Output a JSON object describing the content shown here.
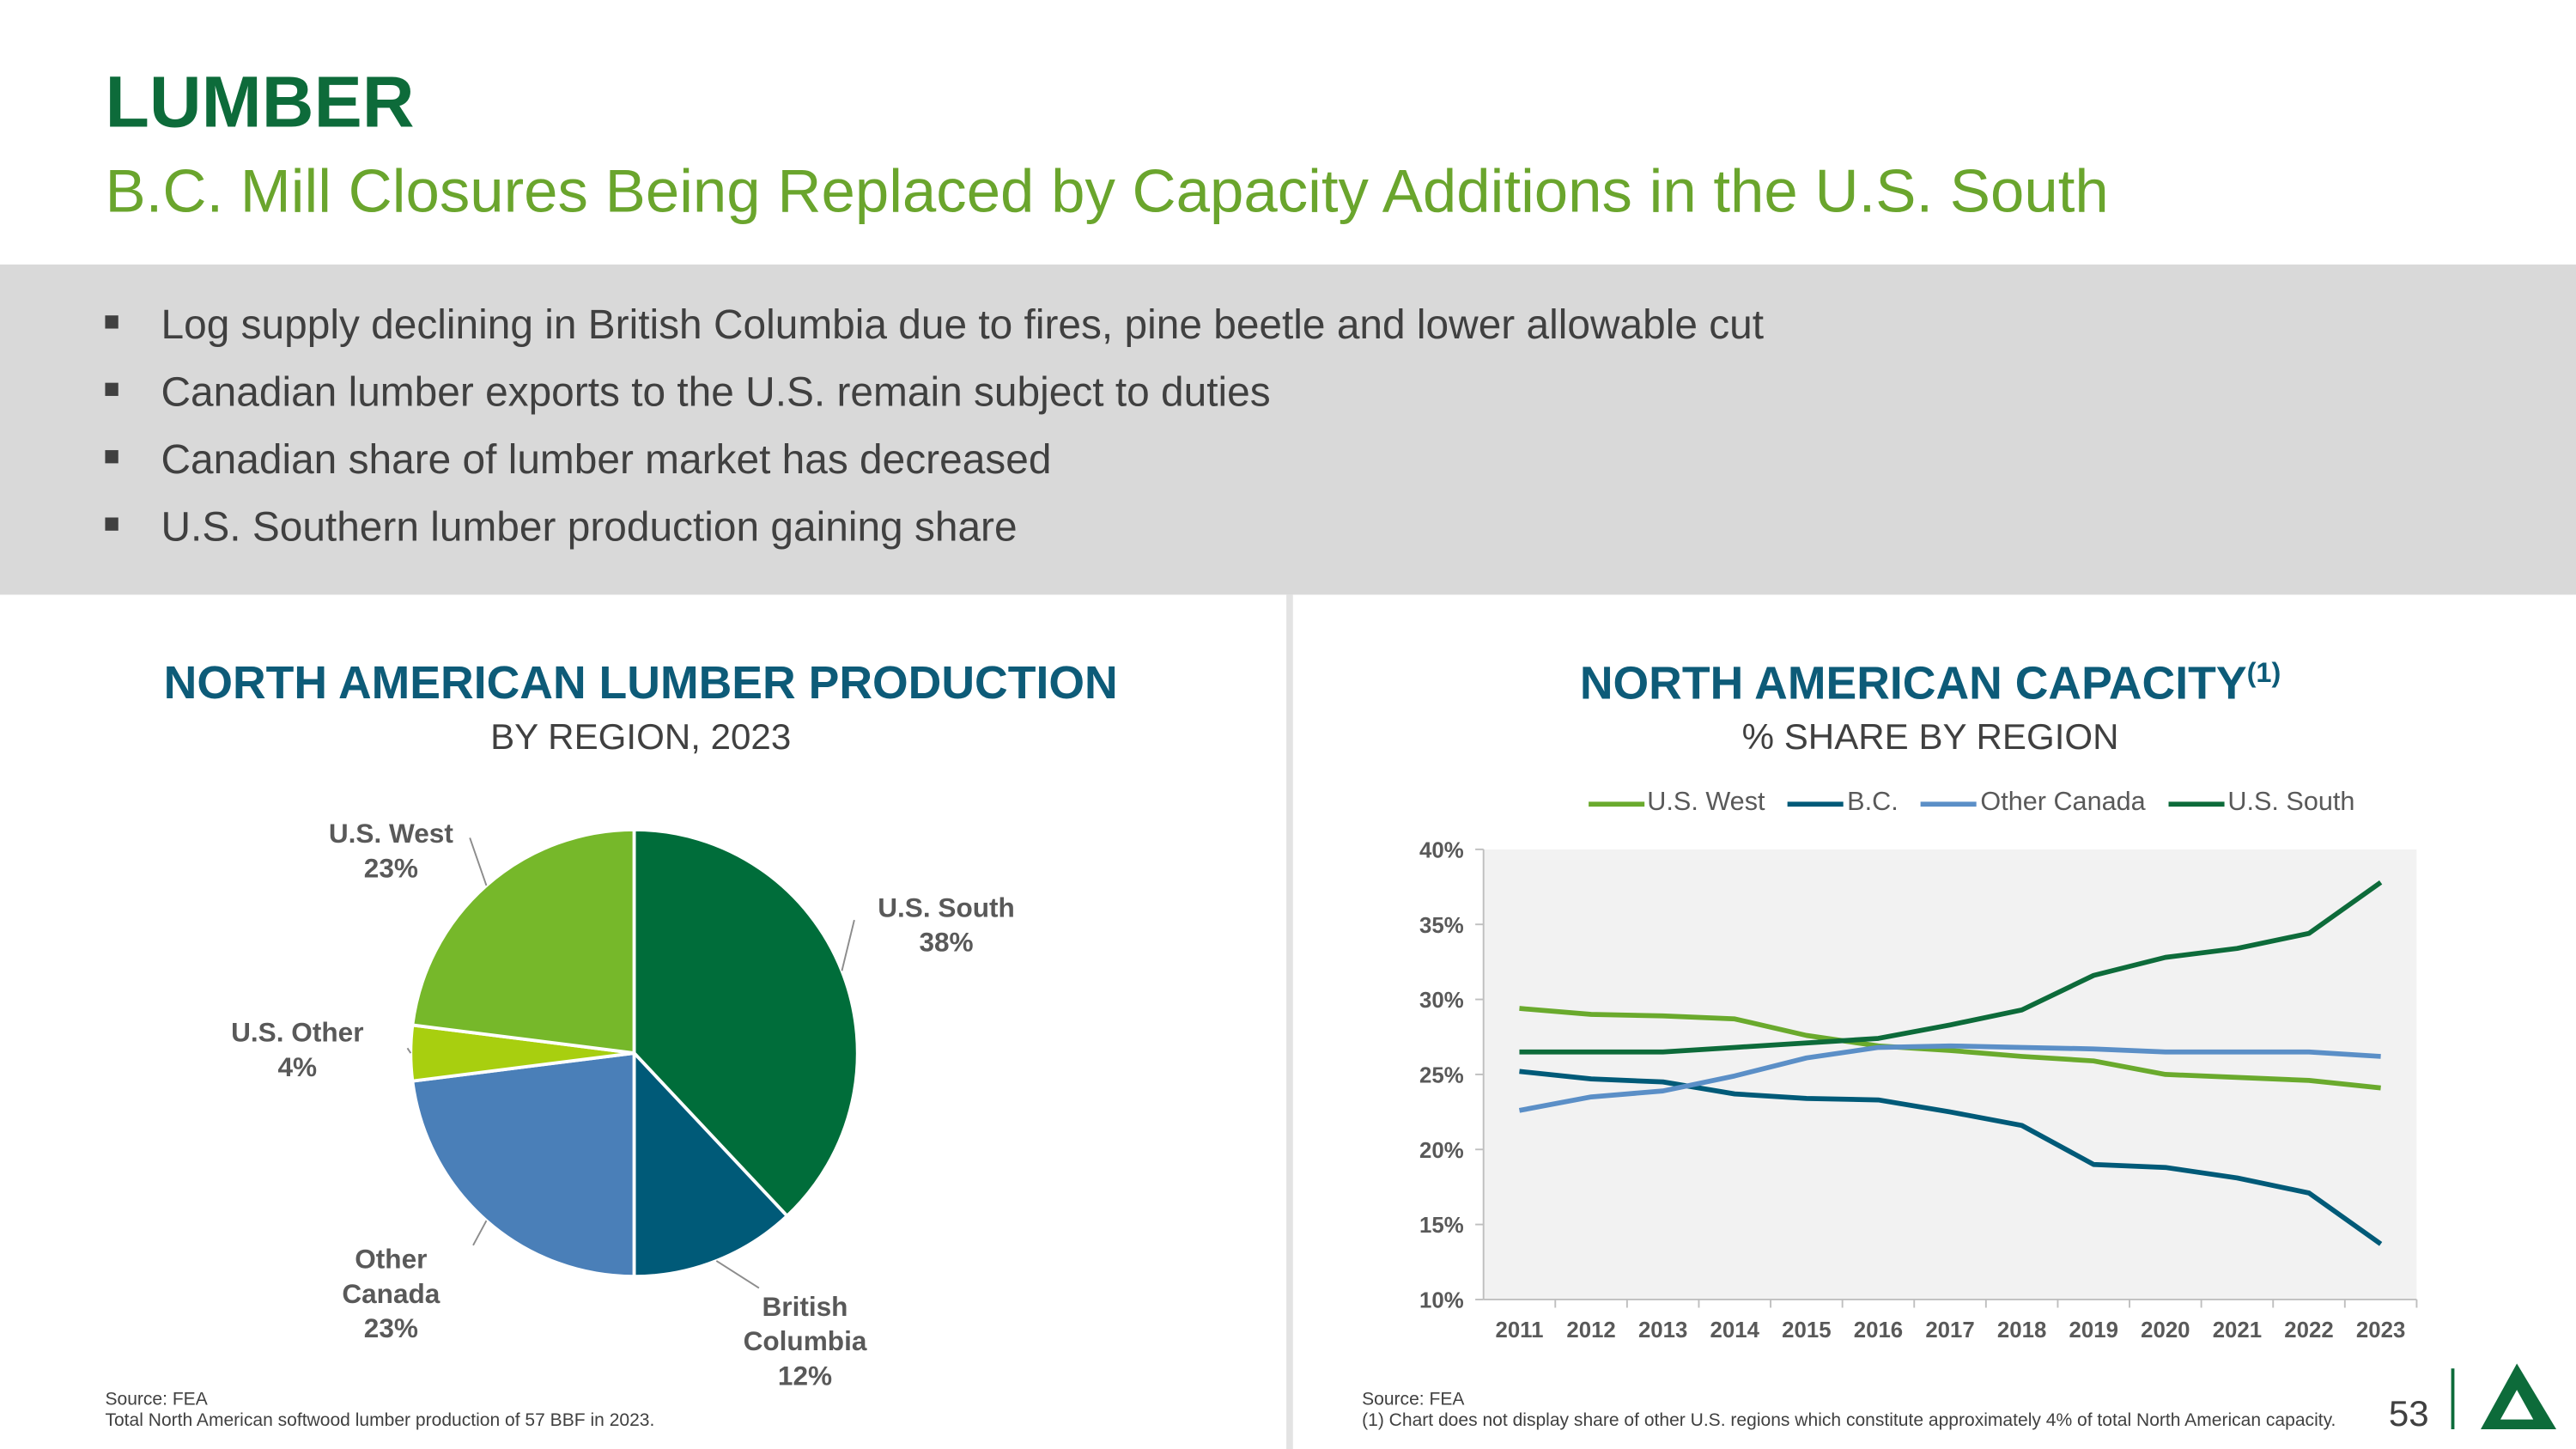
{
  "header": {
    "title": "LUMBER",
    "subtitle": "B.C. Mill Closures Being Replaced by Capacity Additions in the U.S. South"
  },
  "bullets": [
    "Log supply declining in British Columbia due to fires, pine beetle and lower allowable cut",
    "Canadian lumber exports to the U.S. remain subject to duties",
    "Canadian share of lumber market has decreased",
    "U.S. Southern lumber production gaining share"
  ],
  "chart_data": [
    {
      "type": "pie",
      "title": "NORTH AMERICAN LUMBER PRODUCTION",
      "subtitle": "BY REGION, 2023",
      "categories": [
        "U.S. South",
        "British Columbia",
        "Other Canada",
        "U.S. Other",
        "U.S. West"
      ],
      "values": [
        38,
        12,
        23,
        4,
        23
      ],
      "value_labels": [
        "38%",
        "12%",
        "23%",
        "4%",
        "23%"
      ],
      "colors": [
        "#006d3a",
        "#005a78",
        "#4a7fb8",
        "#a8cf0f",
        "#76b82a"
      ],
      "source": "Source: FEA",
      "note": "Total North American softwood lumber production of 57 BBF in 2023."
    },
    {
      "type": "line",
      "title": "NORTH AMERICAN CAPACITY",
      "title_superscript": "(1)",
      "subtitle": "% SHARE BY REGION",
      "categories": [
        "2011",
        "2012",
        "2013",
        "2014",
        "2015",
        "2016",
        "2017",
        "2018",
        "2019",
        "2020",
        "2021",
        "2022",
        "2023"
      ],
      "series": [
        {
          "name": "U.S. West",
          "color": "#6aaa2d",
          "values": [
            29.4,
            29.0,
            28.9,
            28.7,
            27.6,
            26.9,
            26.6,
            26.2,
            25.9,
            25.0,
            24.8,
            24.6,
            24.1
          ]
        },
        {
          "name": "B.C.",
          "color": "#005a78",
          "values": [
            25.2,
            24.7,
            24.5,
            23.7,
            23.4,
            23.3,
            22.5,
            21.6,
            19.0,
            18.8,
            18.1,
            17.1,
            13.7
          ]
        },
        {
          "name": "Other Canada",
          "color": "#5b8fc7",
          "values": [
            22.6,
            23.5,
            23.9,
            24.9,
            26.1,
            26.8,
            26.9,
            26.8,
            26.7,
            26.5,
            26.5,
            26.5,
            26.2
          ]
        },
        {
          "name": "U.S. South",
          "color": "#0d6b3a",
          "values": [
            26.5,
            26.5,
            26.5,
            26.8,
            27.1,
            27.4,
            28.3,
            29.3,
            31.6,
            32.8,
            33.4,
            34.4,
            37.8
          ]
        }
      ],
      "ylim": [
        10,
        40
      ],
      "yticks": [
        {
          "value": 10,
          "label": "10%"
        },
        {
          "value": 15,
          "label": "15%"
        },
        {
          "value": 20,
          "label": "20%"
        },
        {
          "value": 25,
          "label": "25%"
        },
        {
          "value": 30,
          "label": "30%"
        },
        {
          "value": 35,
          "label": "35%"
        },
        {
          "value": 40,
          "label": "40%"
        }
      ],
      "source": "Source: FEA",
      "note": "(1) Chart does not display share of other U.S. regions which constitute approximately 4% of total North American capacity."
    }
  ],
  "page_number": "53"
}
